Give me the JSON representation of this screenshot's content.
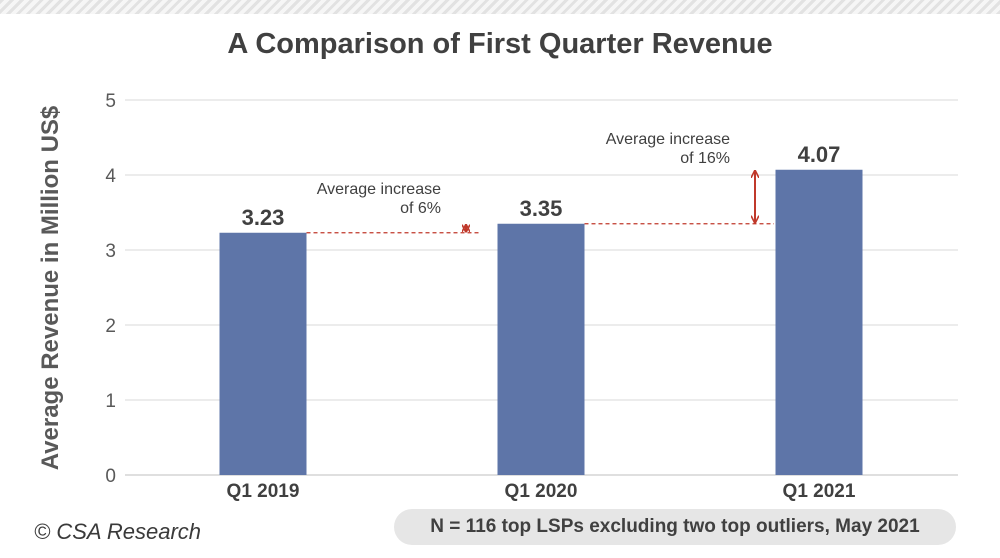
{
  "chart_data": {
    "type": "bar",
    "title": "A Comparison of First Quarter Revenue",
    "xlabel": "",
    "ylabel": "Average Revenue in Million US$",
    "categories": [
      "Q1 2019",
      "Q1 2020",
      "Q1 2021"
    ],
    "values": [
      3.23,
      3.35,
      4.07
    ],
    "value_labels": [
      "3.23",
      "3.35",
      "4.07"
    ],
    "ylim": [
      0,
      5
    ],
    "yticks": [
      "0",
      "1",
      "2",
      "3",
      "4",
      "5"
    ],
    "grid": true,
    "legend": "none",
    "annotations": [
      {
        "lines": [
          "Average increase",
          "of 6%"
        ],
        "from": "Q1 2019",
        "to": "Q1 2020"
      },
      {
        "lines": [
          "Average increase",
          "of 16%"
        ],
        "from": "Q1 2020",
        "to": "Q1 2021"
      }
    ],
    "colors": {
      "bar": "#5e75a8",
      "arrow": "#c0392b",
      "text": "#404040",
      "grid": "#d9d9d9"
    }
  },
  "footer": {
    "copyright": "© CSA Research",
    "note": "N = 116 top LSPs excluding two top outliers, May 2021"
  }
}
